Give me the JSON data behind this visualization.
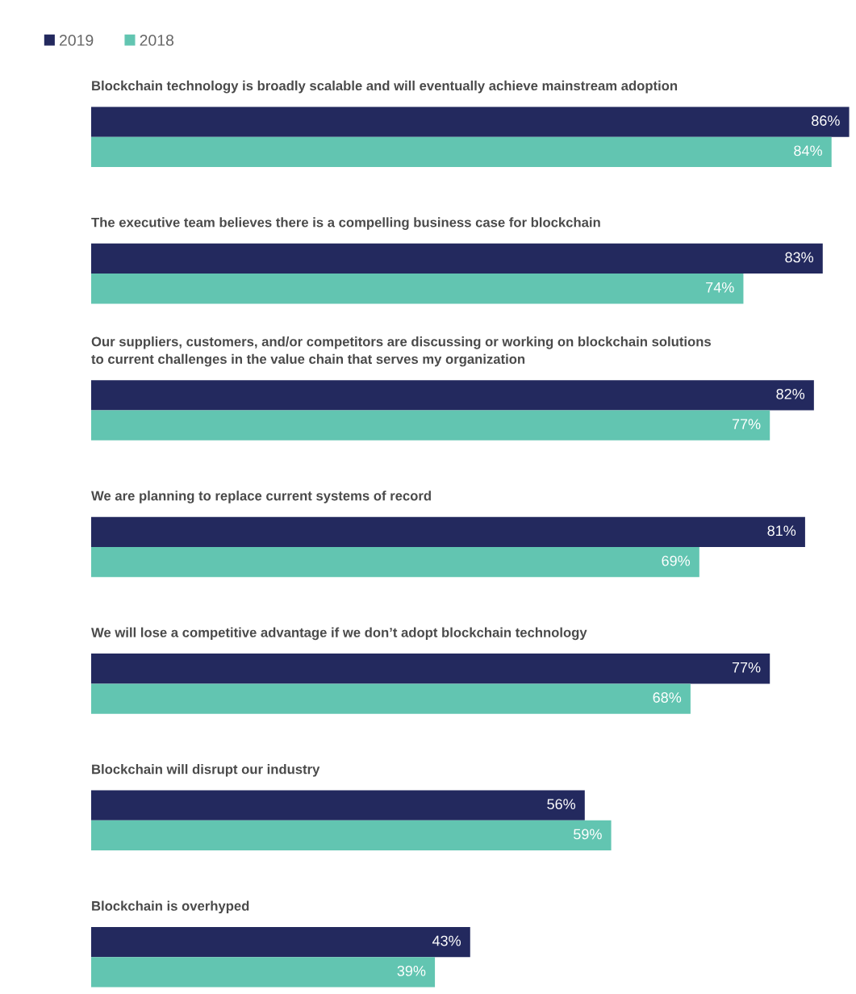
{
  "chart_data": {
    "type": "bar",
    "orientation": "horizontal",
    "legend": "top left",
    "categories": [
      "Blockchain technology is broadly scalable and will eventually achieve mainstream adoption",
      "The executive team believes there is a compelling business case for blockchain",
      "Our suppliers, customers, and/or competitors are discussing or working on blockchain solutions\nto current challenges in the value chain that serves my organization",
      "We are planning to replace current systems of record",
      "We will lose a competitive advantage if we don’t adopt blockchain technology",
      "Blockchain will disrupt our industry",
      "Blockchain is overhyped"
    ],
    "series": [
      {
        "name": "2019",
        "color": "#23295e",
        "values": [
          86,
          83,
          82,
          81,
          77,
          56,
          43
        ],
        "value_labels": [
          "86%",
          "83%",
          "82%",
          "81%",
          "77%",
          "56%",
          "43%"
        ]
      },
      {
        "name": "2018",
        "color": "#62c5b1",
        "values": [
          84,
          74,
          77,
          69,
          68,
          59,
          39
        ],
        "value_labels": [
          "84%",
          "74%",
          "77%",
          "69%",
          "68%",
          "59%",
          "39%"
        ]
      }
    ]
  }
}
